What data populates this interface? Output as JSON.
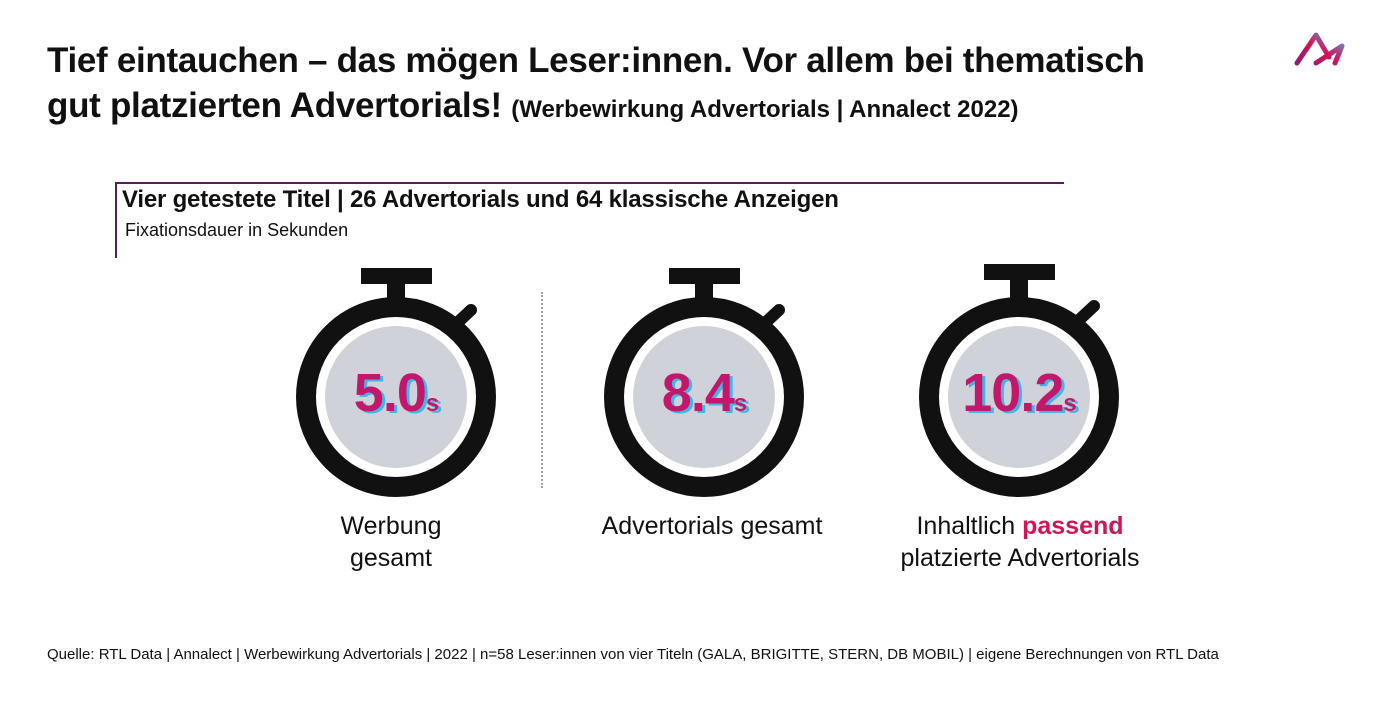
{
  "header": {
    "title": "Tief eintauchen – das mögen Leser:innen. Vor allem bei thematisch gut platzierten Advertorials!",
    "subtitle": "(Werbewirkung Advertorials | Annalect 2022)"
  },
  "panel": {
    "title": "Vier getestete Titel | 26 Advertorials und 64 klassische Anzeigen",
    "subtitle": "Fixationsdauer in Sekunden"
  },
  "timers": [
    {
      "value": "5.0",
      "unit": "s",
      "label_line1": "Werbung",
      "label_line2": "gesamt"
    },
    {
      "value": "8.4",
      "unit": "s",
      "label_line1": "Advertorials gesamt",
      "label_line2": ""
    },
    {
      "value": "10.2",
      "unit": "s",
      "label_prefix": "Inhaltlich ",
      "label_highlight": "passend",
      "label_line2": "platzierte Advertorials"
    }
  ],
  "footer": {
    "source": "Quelle: RTL Data | Annalect | Werbewirkung Advertorials | 2022 | n=58 Leser:innen von vier Titeln (GALA, BRIGITTE, STERN, DB MOBIL) | eigene Berechnungen von RTL Data"
  },
  "icons": {
    "logo": "annalect-logo-icon",
    "timer": "stopwatch-icon"
  },
  "colors": {
    "value": "#c4176b",
    "value_shadow": "#3fb6e6",
    "highlight": "#d4145a",
    "dial": "#cfd2d8",
    "frame": "#5b1a5b",
    "watch": "#111111"
  }
}
